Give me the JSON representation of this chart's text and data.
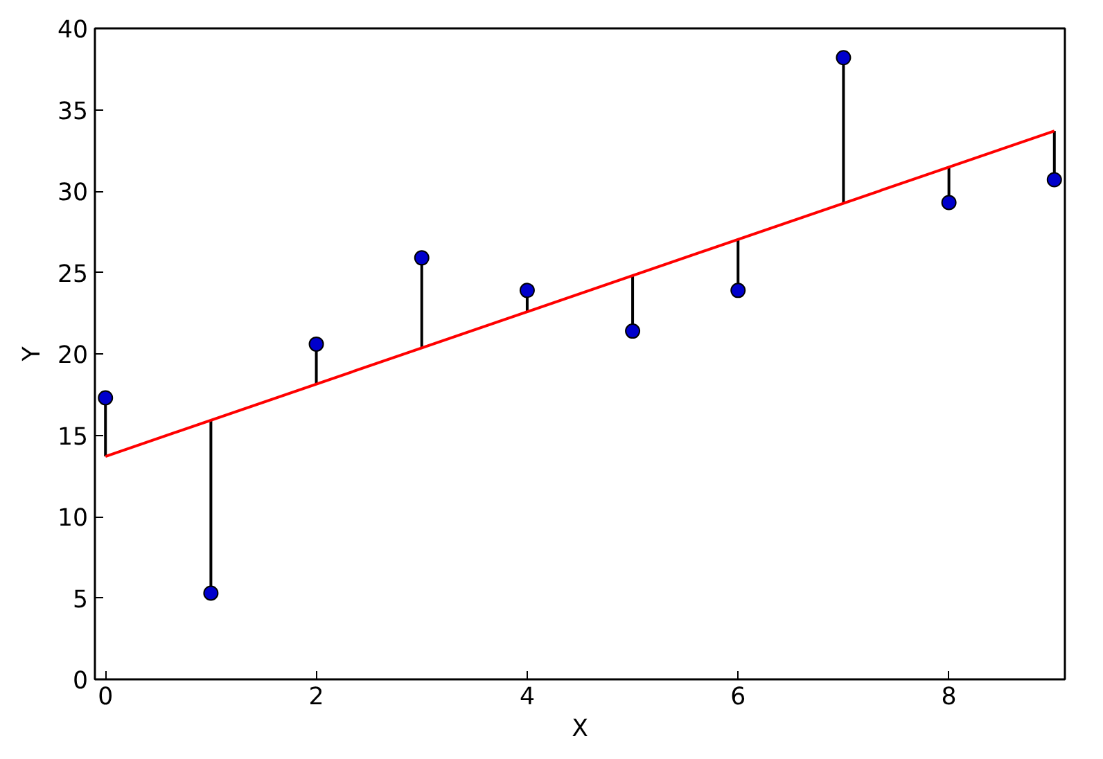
{
  "chart_data": {
    "type": "scatter",
    "xlabel": "X",
    "ylabel": "Y",
    "grid": false,
    "xlim": [
      -0.1,
      9.1
    ],
    "ylim": [
      0,
      40
    ],
    "xticks": [
      0,
      2,
      4,
      6,
      8
    ],
    "yticks": [
      0,
      5,
      10,
      15,
      20,
      25,
      30,
      35,
      40
    ],
    "series": [
      {
        "marker": "circle",
        "color": "#0000cc",
        "x": [
          0,
          1,
          2,
          3,
          4,
          5,
          6,
          7,
          8,
          9
        ],
        "values": [
          17.3,
          5.3,
          20.6,
          25.9,
          23.9,
          21.4,
          23.9,
          38.2,
          29.3,
          30.7
        ],
        "errors": [
          [
            13.7,
            17.3
          ],
          [
            5.3,
            15.9
          ],
          [
            18.1,
            20.6
          ],
          [
            20.4,
            25.9
          ],
          [
            22.6,
            23.9
          ],
          [
            21.4,
            24.8
          ],
          [
            23.9,
            27.0
          ],
          [
            29.3,
            38.2
          ],
          [
            29.3,
            31.5
          ],
          [
            30.7,
            33.7
          ]
        ]
      },
      {
        "type": "line",
        "color": "#ff0000",
        "x": [
          0,
          9
        ],
        "values": [
          13.7,
          33.7
        ]
      }
    ]
  }
}
